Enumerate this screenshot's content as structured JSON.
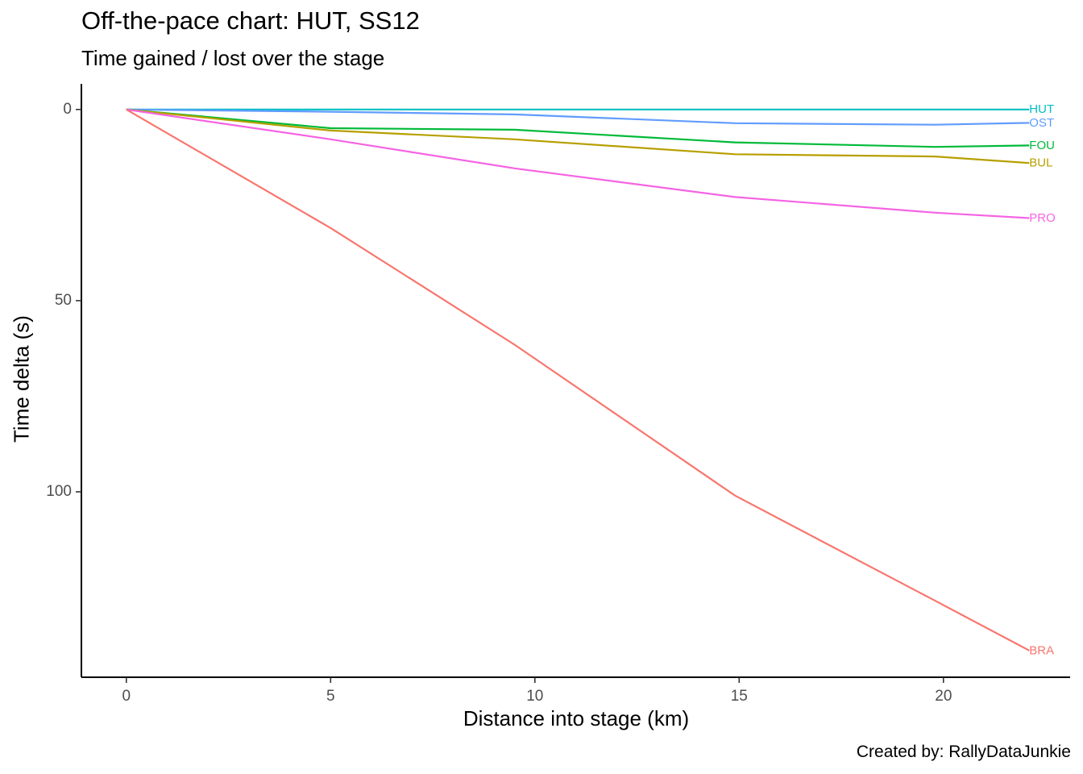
{
  "chart_data": {
    "type": "line",
    "title": "Off-the-pace chart: HUT, SS12",
    "subtitle": "Time gained / lost over the stage",
    "xlabel": "Distance into stage (km)",
    "ylabel": "Time delta (s)",
    "caption": "Created by: RallyDataJunkie",
    "xlim": [
      -1.1,
      23.1
    ],
    "ylim": [
      -6.7,
      148.5
    ],
    "y_reversed": true,
    "x_ticks": [
      0,
      5,
      10,
      15,
      20
    ],
    "y_ticks": [
      0,
      50,
      100
    ],
    "grid": false,
    "legend": "none (direct end labels)",
    "series": [
      {
        "name": "HUT",
        "color": "#00BFC4",
        "x": [
          0,
          5,
          9.5,
          14.9,
          19.8,
          22.1
        ],
        "y": [
          0,
          0,
          0,
          0,
          0,
          0
        ]
      },
      {
        "name": "OST",
        "color": "#619CFF",
        "x": [
          0,
          5,
          9.5,
          14.9,
          19.8,
          22.1
        ],
        "y": [
          0,
          0.6,
          1.3,
          3.6,
          4.0,
          3.5
        ]
      },
      {
        "name": "FOU",
        "color": "#00BA38",
        "x": [
          0,
          5,
          9.5,
          14.9,
          19.8,
          22.1
        ],
        "y": [
          0,
          4.9,
          5.3,
          8.6,
          9.8,
          9.4
        ]
      },
      {
        "name": "BUL",
        "color": "#B79F00",
        "x": [
          0,
          5,
          9.5,
          14.9,
          19.8,
          22.1
        ],
        "y": [
          0,
          5.5,
          7.8,
          11.7,
          12.3,
          14.0
        ]
      },
      {
        "name": "PRO",
        "color": "#F564E3",
        "x": [
          0,
          5,
          9.5,
          14.9,
          19.8,
          22.1
        ],
        "y": [
          0,
          7.8,
          15.4,
          22.9,
          27.0,
          28.4
        ]
      },
      {
        "name": "BRA",
        "color": "#F8766D",
        "x": [
          0,
          5,
          9.5,
          14.9,
          19.8,
          22.1
        ],
        "y": [
          0,
          31.0,
          61.5,
          101.0,
          128.5,
          141.5
        ]
      }
    ]
  }
}
